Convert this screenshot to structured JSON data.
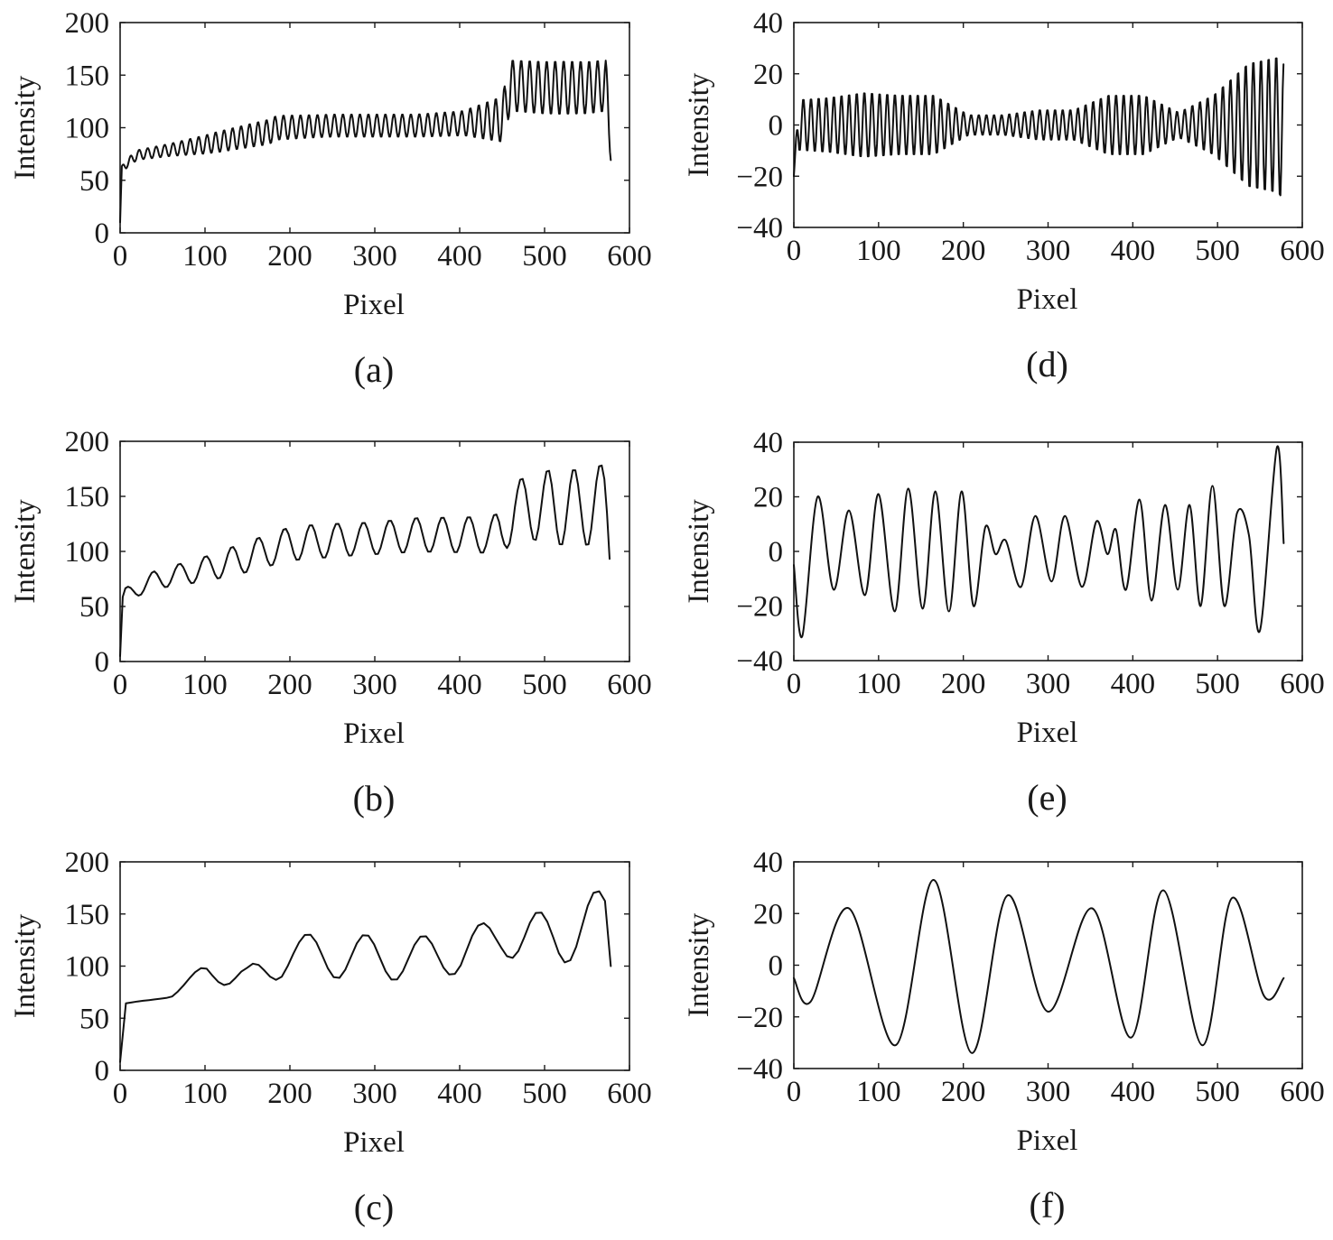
{
  "chart_data": [
    {
      "panel": "(a)",
      "type": "line",
      "xlabel": "Pixel",
      "ylabel": "Intensity",
      "xlim": [
        0,
        600
      ],
      "ylim": [
        0,
        200
      ],
      "xticks": [
        0,
        100,
        200,
        300,
        400,
        500,
        600
      ],
      "yticks": [
        0,
        50,
        100,
        150,
        200
      ],
      "series": [
        {
          "x": [
            0,
            2,
            5,
            20,
            60,
            100,
            150,
            175,
            185,
            250,
            300,
            350,
            400,
            450,
            460,
            500,
            550,
            572,
            578
          ],
          "values": [
            10,
            62,
            64,
            74,
            79,
            84,
            92,
            96,
            100,
            102,
            102,
            102,
            104,
            108,
            140,
            138,
            138,
            140,
            93
          ],
          "oscillation": {
            "period_px": 10,
            "amplitude": [
              4,
              6,
              10,
              12,
              11,
              11,
              11,
              12,
              25,
              26,
              25
            ]
          }
        }
      ]
    },
    {
      "panel": "(b)",
      "type": "line",
      "xlabel": "Pixel",
      "ylabel": "Intensity",
      "xlim": [
        0,
        600
      ],
      "ylim": [
        0,
        200
      ],
      "xticks": [
        0,
        100,
        200,
        300,
        400,
        500,
        600
      ],
      "yticks": [
        0,
        50,
        100,
        150,
        200
      ],
      "series": [
        {
          "x": [
            0,
            2,
            5,
            40,
            100,
            150,
            200,
            250,
            300,
            350,
            400,
            450,
            465,
            500,
            550,
            572,
            578
          ],
          "values": [
            5,
            55,
            60,
            74,
            84,
            95,
            107,
            110,
            112,
            115,
            115,
            115,
            140,
            140,
            140,
            145,
            105
          ],
          "oscillation": {
            "period_px": 31,
            "amplitude": [
              6,
              10,
              14,
              16,
              15,
              16,
              17,
              35,
              36
            ]
          }
        }
      ]
    },
    {
      "panel": "(c)",
      "type": "line",
      "xlabel": "Pixel",
      "ylabel": "Intensity",
      "xlim": [
        0,
        600
      ],
      "ylim": [
        0,
        200
      ],
      "xticks": [
        0,
        100,
        200,
        300,
        400,
        500,
        600
      ],
      "yticks": [
        0,
        50,
        100,
        150,
        200
      ],
      "series": [
        {
          "x": [
            0,
            2,
            5,
            20,
            60,
            100,
            150,
            200,
            250,
            300,
            350,
            400,
            450,
            500,
            550,
            572,
            578
          ],
          "values": [
            8,
            60,
            64,
            66,
            70,
            98,
            85,
            112,
            110,
            108,
            108,
            112,
            130,
            125,
            140,
            145,
            100
          ],
          "oscillation": {
            "period_px": 68,
            "amplitude": [
              0,
              0,
              12,
              18,
              22,
              22,
              20,
              20,
              30,
              30
            ]
          }
        }
      ]
    },
    {
      "panel": "(d)",
      "type": "line",
      "xlabel": "Pixel",
      "ylabel": "Intensity",
      "xlim": [
        0,
        600
      ],
      "ylim": [
        -40,
        40
      ],
      "xticks": [
        0,
        100,
        200,
        300,
        400,
        500,
        600
      ],
      "yticks": [
        -40,
        -20,
        0,
        20,
        40
      ],
      "series": [
        {
          "x": [
            0,
            5,
            50,
            100,
            150,
            200,
            220,
            260,
            300,
            350,
            370,
            380,
            450,
            470,
            500,
            530,
            545,
            560,
            572,
            578
          ],
          "values": [
            -20,
            0,
            0,
            0,
            0,
            0,
            0,
            0,
            0,
            0,
            0,
            0,
            0,
            0,
            0,
            0,
            0,
            0,
            0,
            -3
          ],
          "oscillation": {
            "period_px": 9,
            "amplitude": [
              10,
              11,
              13,
              12,
              12,
              4,
              4,
              6,
              6,
              12,
              12,
              5,
              12,
              25,
              28
            ]
          }
        }
      ]
    },
    {
      "panel": "(e)",
      "type": "line",
      "xlabel": "Pixel",
      "ylabel": "Intensity",
      "xlim": [
        0,
        600
      ],
      "ylim": [
        -40,
        40
      ],
      "xticks": [
        0,
        100,
        200,
        300,
        400,
        500,
        600
      ],
      "yticks": [
        -40,
        -20,
        0,
        20,
        40
      ],
      "series": [
        {
          "x": [
            0,
            10,
            28,
            47,
            65,
            84,
            100,
            119,
            135,
            152,
            167,
            183,
            198,
            212,
            226,
            238,
            250,
            268,
            285,
            304,
            320,
            340,
            357,
            370,
            380,
            392,
            408,
            422,
            438,
            453,
            467,
            480,
            494,
            508,
            523,
            537,
            550,
            570,
            578
          ],
          "values": [
            -5,
            -31,
            20,
            -14,
            15,
            -16,
            21,
            -22,
            23,
            -21,
            22,
            -22,
            22,
            -20,
            9,
            -1,
            4,
            -13,
            13,
            -11,
            13,
            -13,
            11,
            -1,
            8,
            -14,
            19,
            -18,
            17,
            -14,
            17,
            -20,
            24,
            -20,
            14,
            6,
            -29,
            38,
            3
          ]
        }
      ]
    },
    {
      "panel": "(f)",
      "type": "line",
      "xlabel": "Pixel",
      "ylabel": "Intensity",
      "xlim": [
        0,
        600
      ],
      "ylim": [
        -40,
        40
      ],
      "xticks": [
        0,
        100,
        200,
        300,
        400,
        500,
        600
      ],
      "yticks": [
        -40,
        -20,
        0,
        20,
        40
      ],
      "series": [
        {
          "x": [
            0,
            20,
            65,
            120,
            165,
            210,
            252,
            300,
            352,
            398,
            436,
            482,
            517,
            555,
            578
          ],
          "values": [
            -5,
            -14,
            22,
            -31,
            33,
            -34,
            27,
            -18,
            22,
            -28,
            29,
            -31,
            26,
            -12,
            -5
          ]
        }
      ]
    }
  ]
}
